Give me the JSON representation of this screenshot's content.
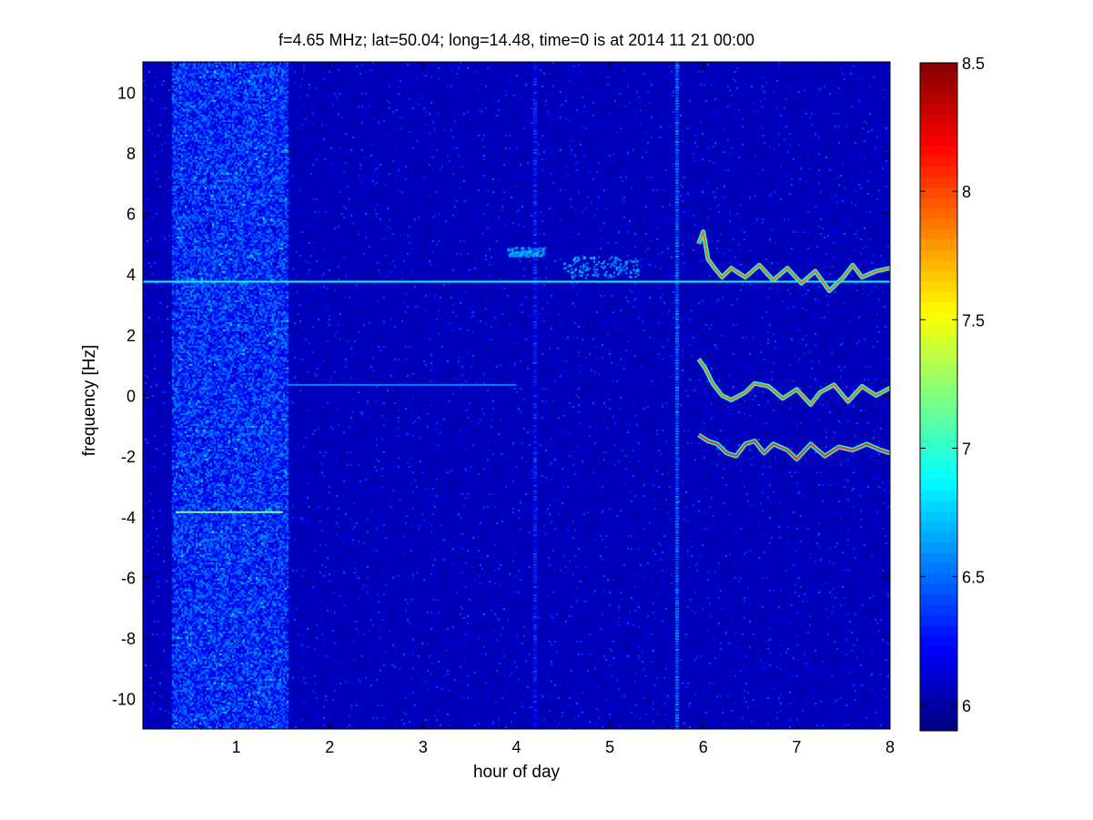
{
  "chart_data": {
    "type": "heatmap",
    "title": "f=4.65 MHz;  lat=50.04; long=14.48, time=0 is at 2014 11 21 00:00",
    "xlabel": "hour of day",
    "ylabel": "frequency [Hz]",
    "xlim": [
      0,
      8
    ],
    "ylim": [
      -11,
      11
    ],
    "xticks": [
      1,
      2,
      3,
      4,
      5,
      6,
      7,
      8
    ],
    "yticks": [
      -10,
      -8,
      -6,
      -4,
      -2,
      0,
      2,
      4,
      6,
      8,
      10
    ],
    "colorbar": {
      "colormap": "jet",
      "clim": [
        5.9,
        8.5
      ],
      "ticks": [
        6,
        6.5,
        7,
        7.5,
        8,
        8.5
      ]
    },
    "background_level": 6.05,
    "features": [
      {
        "kind": "horizontal-line",
        "y": 3.75,
        "x": [
          0,
          8
        ],
        "level": 6.9
      },
      {
        "kind": "horizontal-line",
        "y": 0.35,
        "x": [
          1.55,
          4.0
        ],
        "level": 6.55
      },
      {
        "kind": "horizontal-line",
        "y": -3.85,
        "x": [
          0.35,
          1.5
        ],
        "level": 7.2
      },
      {
        "kind": "vertical-band",
        "x": 5.72,
        "y": [
          -11,
          11
        ],
        "level": 6.5
      },
      {
        "kind": "vertical-band",
        "x": 4.2,
        "y": [
          -11,
          11
        ],
        "level": 6.3
      },
      {
        "kind": "noise-band",
        "x": [
          0.3,
          1.55
        ],
        "y": [
          -11,
          11
        ],
        "level": 6.3
      },
      {
        "kind": "trace",
        "level": 7.9,
        "points": [
          [
            5.95,
            5.0
          ],
          [
            6.0,
            5.4
          ],
          [
            6.05,
            4.5
          ],
          [
            6.12,
            4.2
          ],
          [
            6.2,
            3.9
          ],
          [
            6.3,
            4.2
          ],
          [
            6.45,
            3.9
          ],
          [
            6.6,
            4.3
          ],
          [
            6.75,
            3.8
          ],
          [
            6.9,
            4.2
          ],
          [
            7.05,
            3.7
          ],
          [
            7.2,
            4.1
          ],
          [
            7.35,
            3.45
          ],
          [
            7.5,
            3.9
          ],
          [
            7.6,
            4.3
          ],
          [
            7.7,
            3.9
          ],
          [
            7.85,
            4.1
          ],
          [
            8.0,
            4.2
          ]
        ]
      },
      {
        "kind": "trace",
        "level": 7.9,
        "points": [
          [
            5.95,
            1.2
          ],
          [
            6.02,
            0.9
          ],
          [
            6.1,
            0.4
          ],
          [
            6.2,
            0.0
          ],
          [
            6.3,
            -0.15
          ],
          [
            6.45,
            0.1
          ],
          [
            6.55,
            0.4
          ],
          [
            6.7,
            0.3
          ],
          [
            6.85,
            -0.1
          ],
          [
            7.0,
            0.2
          ],
          [
            7.15,
            -0.3
          ],
          [
            7.25,
            0.1
          ],
          [
            7.4,
            0.35
          ],
          [
            7.55,
            -0.2
          ],
          [
            7.7,
            0.3
          ],
          [
            7.85,
            0.0
          ],
          [
            8.0,
            0.25
          ]
        ]
      },
      {
        "kind": "trace",
        "level": 8.05,
        "points": [
          [
            5.95,
            -1.3
          ],
          [
            6.05,
            -1.5
          ],
          [
            6.15,
            -1.6
          ],
          [
            6.25,
            -1.9
          ],
          [
            6.35,
            -2.0
          ],
          [
            6.45,
            -1.6
          ],
          [
            6.55,
            -1.5
          ],
          [
            6.65,
            -1.9
          ],
          [
            6.75,
            -1.6
          ],
          [
            6.9,
            -1.8
          ],
          [
            7.0,
            -2.1
          ],
          [
            7.15,
            -1.6
          ],
          [
            7.3,
            -2.0
          ],
          [
            7.45,
            -1.7
          ],
          [
            7.6,
            -1.8
          ],
          [
            7.75,
            -1.6
          ],
          [
            7.9,
            -1.8
          ],
          [
            8.0,
            -1.9
          ]
        ]
      },
      {
        "kind": "blob",
        "x": [
          3.9,
          4.3
        ],
        "y": [
          4.6,
          4.9
        ],
        "level": 6.5
      },
      {
        "kind": "blob",
        "x": [
          4.5,
          5.3
        ],
        "y": [
          3.9,
          4.6
        ],
        "level": 6.55
      }
    ]
  }
}
